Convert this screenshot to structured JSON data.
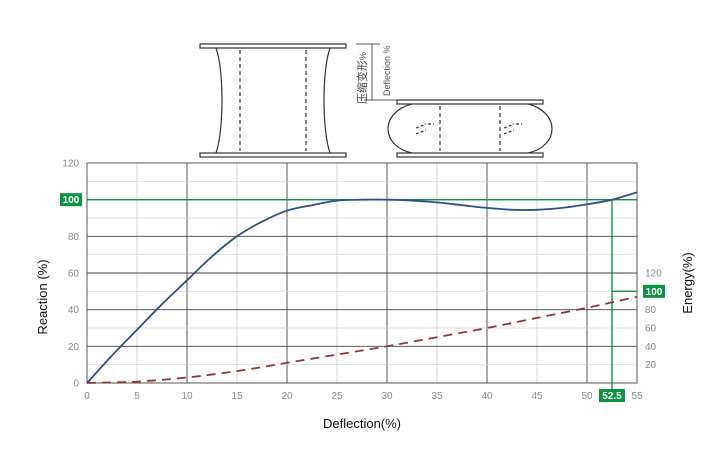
{
  "chart_data": {
    "type": "line",
    "xlabel": "Deflection(%)",
    "ylabel": "Reaction (%)",
    "y2label": "Energy(%)",
    "xlim": [
      0,
      55
    ],
    "ylim": [
      0,
      120
    ],
    "y2lim": [
      0,
      120
    ],
    "grid": true,
    "x_ticks": [
      0,
      5,
      10,
      15,
      20,
      25,
      30,
      35,
      40,
      45,
      50,
      55
    ],
    "y_ticks": [
      0,
      20,
      40,
      60,
      80,
      100,
      120
    ],
    "y2_ticks": [
      20,
      40,
      60,
      80,
      100,
      120
    ],
    "series": [
      {
        "axis": "left",
        "color": "#2f4f86",
        "style": "solid",
        "x": [
          0,
          2.5,
          5,
          7.5,
          10,
          12.5,
          15,
          17.5,
          20,
          22.5,
          25,
          27.5,
          30,
          32.5,
          35,
          37.5,
          40,
          42.5,
          45,
          47.5,
          50,
          52.5,
          55
        ],
        "values": [
          0,
          15,
          29,
          43,
          56,
          69,
          80,
          88,
          94,
          97,
          99.5,
          100,
          100,
          99.5,
          98.5,
          97,
          95.5,
          94.5,
          94.5,
          95.5,
          97.5,
          100,
          104
        ]
      },
      {
        "axis": "right",
        "color": "#8b3a3a",
        "style": "dashed",
        "x": [
          0,
          5,
          10,
          15,
          20,
          25,
          30,
          35,
          40,
          45,
          50,
          52.5,
          55
        ],
        "values": [
          0,
          1.5,
          6,
          13,
          22,
          31,
          40,
          50,
          60,
          71,
          82,
          88,
          94
        ]
      }
    ],
    "annotations": {
      "reaction_ref": {
        "y": 100,
        "label": "100",
        "color": "#0b9444"
      },
      "energy_ref": {
        "y": 100,
        "label": "100",
        "color": "#0b9444"
      },
      "deflection_ref": {
        "x": 52.5,
        "label": "52.5",
        "color": "#0b9444"
      }
    }
  },
  "diagram": {
    "cjk_label": "压缩变形",
    "pct_label": "%",
    "deflection_label": "Deflection %"
  }
}
